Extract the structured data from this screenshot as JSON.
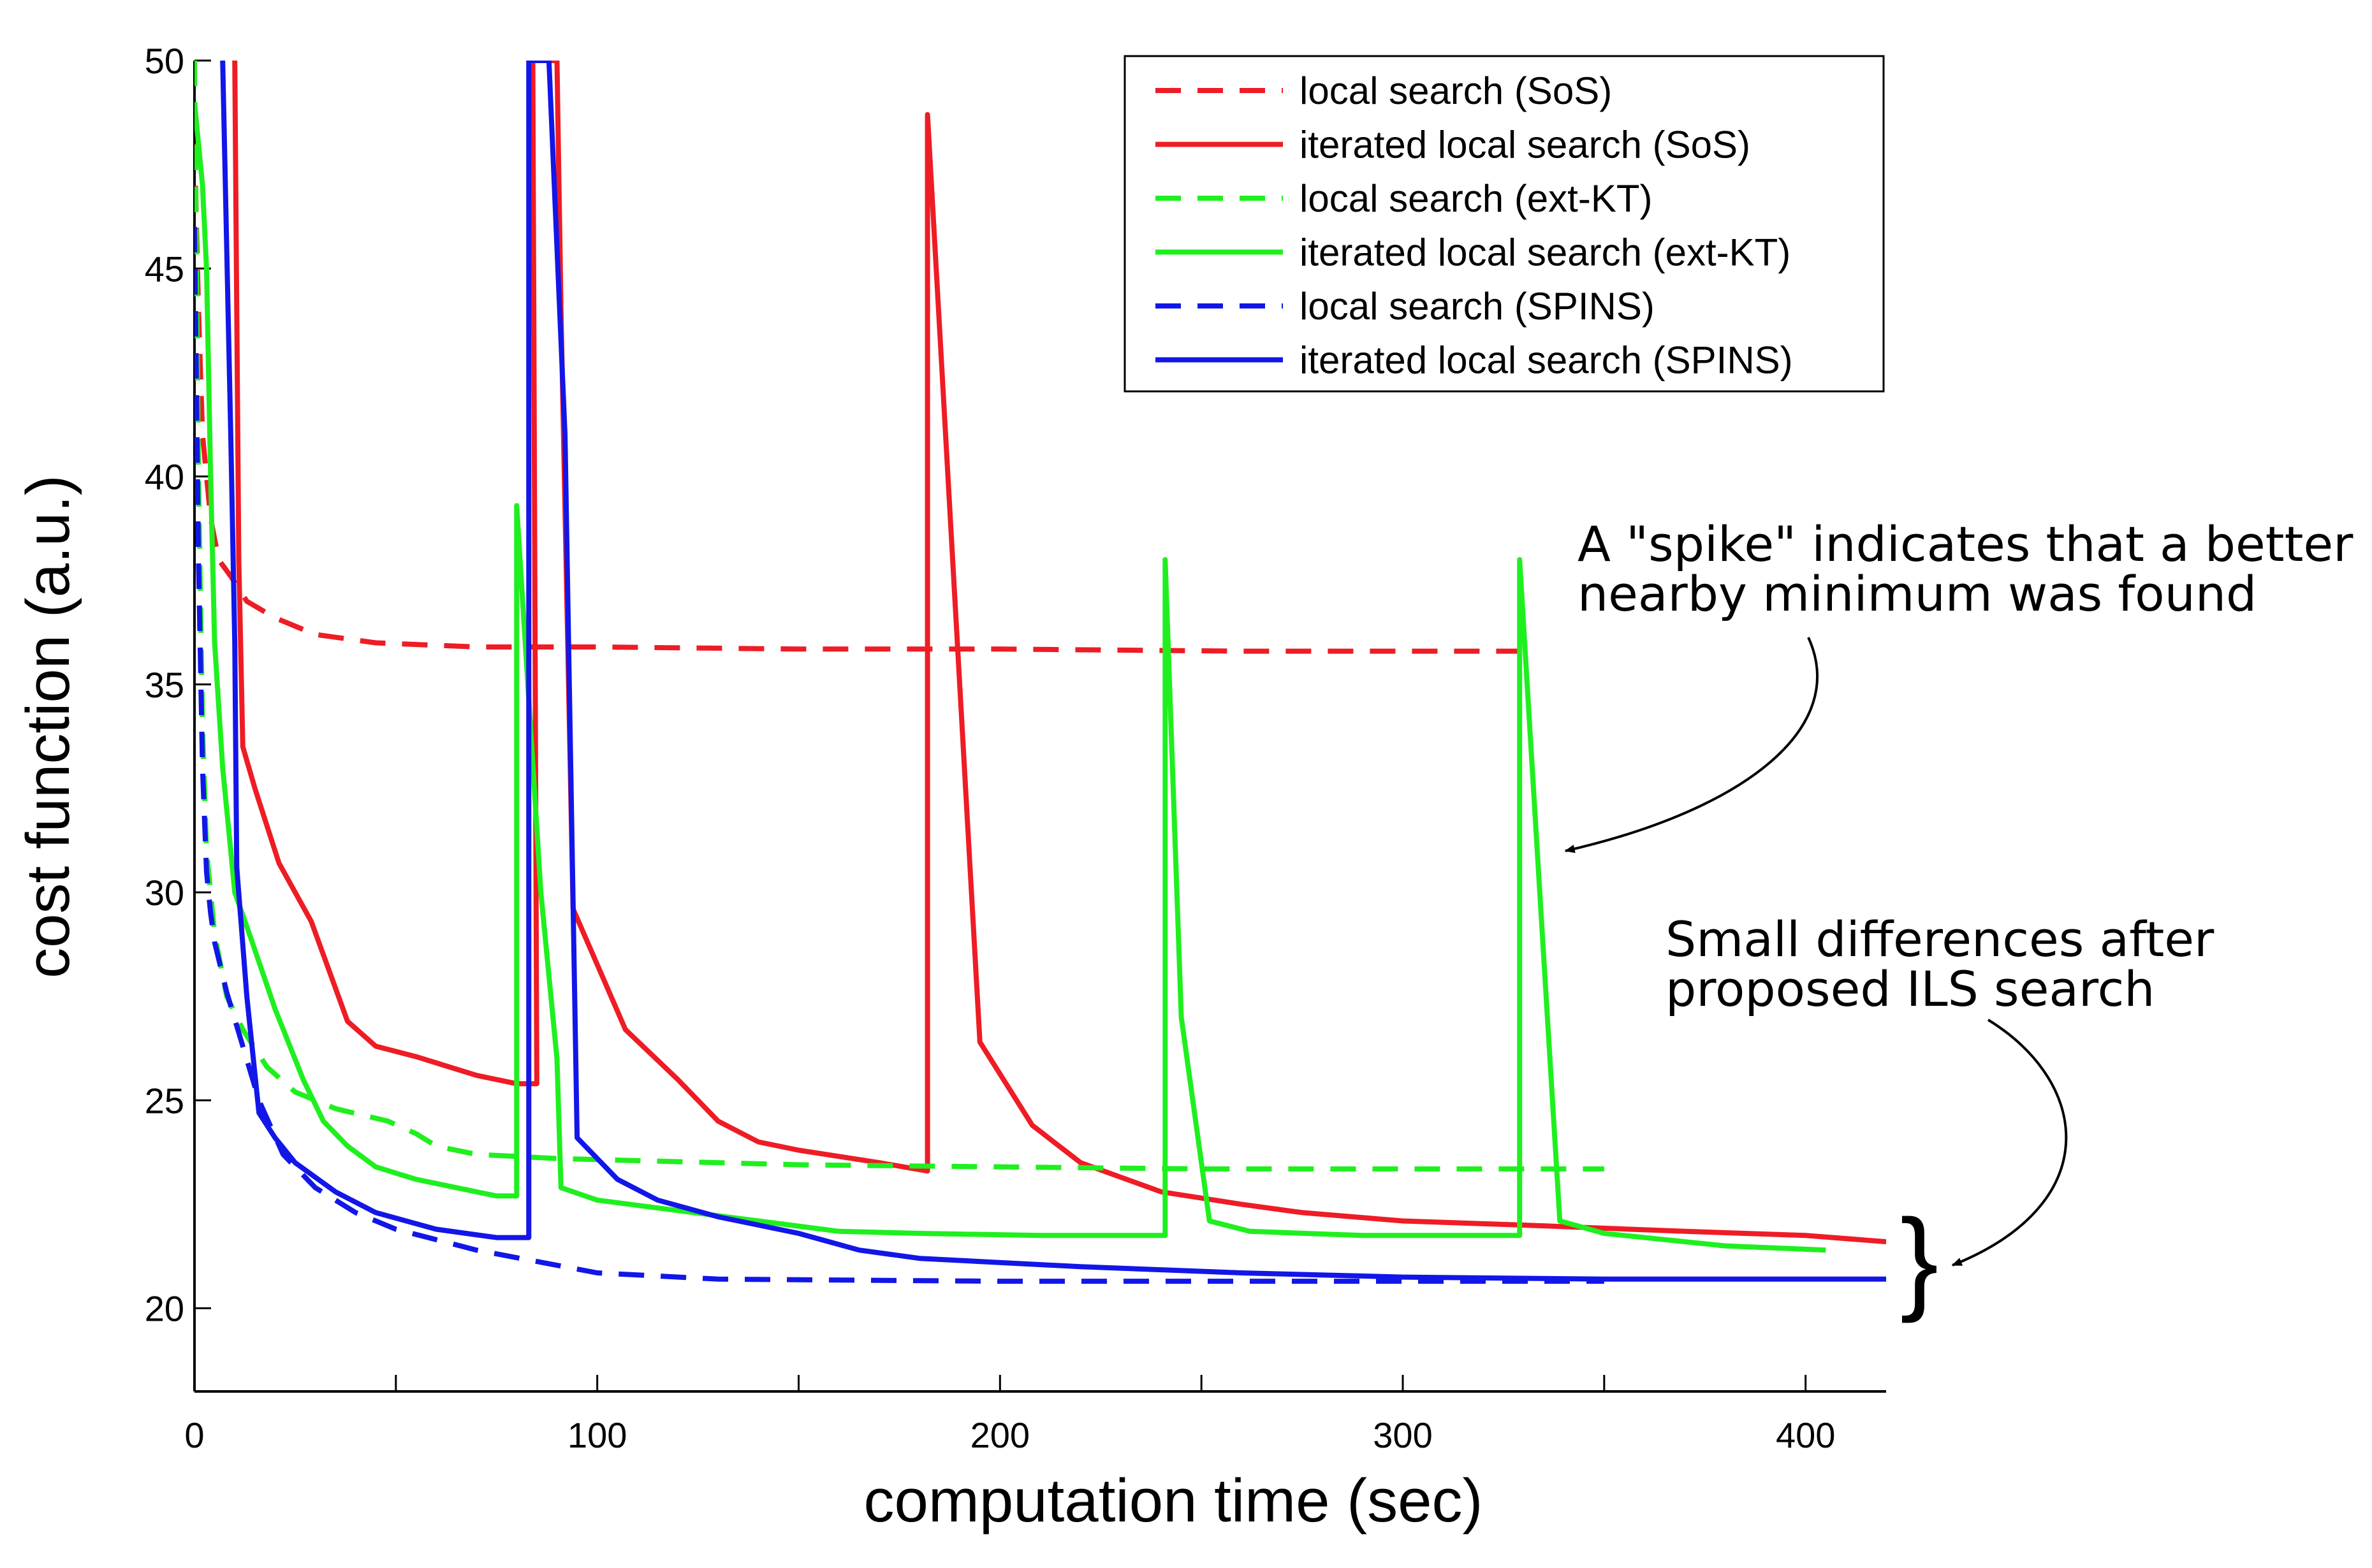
{
  "chart_data": {
    "type": "line",
    "title": "",
    "xlabel": "computation time (sec)",
    "ylabel": "cost function (a.u.)",
    "xlim": [
      0,
      420
    ],
    "ylim": [
      18,
      50
    ],
    "x_ticks": [
      0,
      100,
      200,
      300,
      400
    ],
    "x_minor_ticks": [
      50,
      150,
      250,
      350
    ],
    "y_ticks": [
      20,
      25,
      30,
      35,
      40,
      45,
      50
    ],
    "grid": false,
    "legend_position": "top-right",
    "series": [
      {
        "name": "local search (SoS)",
        "color": "#ee1c25",
        "dash": "dashed",
        "points": [
          [
            0,
            48
          ],
          [
            1,
            44
          ],
          [
            2,
            41
          ],
          [
            4,
            39
          ],
          [
            6,
            38
          ],
          [
            9,
            37.6
          ],
          [
            13,
            37
          ],
          [
            20,
            36.6
          ],
          [
            30,
            36.2
          ],
          [
            45,
            36
          ],
          [
            70,
            35.9
          ],
          [
            100,
            35.9
          ],
          [
            150,
            35.85
          ],
          [
            200,
            35.85
          ],
          [
            260,
            35.8
          ],
          [
            330,
            35.8
          ]
        ]
      },
      {
        "name": "iterated local search (SoS)",
        "color": "#ee1c25",
        "dash": "solid",
        "points": [
          [
            10,
            50
          ],
          [
            10.5,
            44
          ],
          [
            11,
            38
          ],
          [
            12,
            33.5
          ],
          [
            15,
            32.5
          ],
          [
            21,
            30.7
          ],
          [
            29,
            29.3
          ],
          [
            38,
            26.9
          ],
          [
            45,
            26.3
          ],
          [
            55,
            26.05
          ],
          [
            60,
            25.9
          ],
          [
            70,
            25.6
          ],
          [
            80,
            25.4
          ],
          [
            85,
            25.4
          ],
          [
            84,
            50
          ],
          [
            90,
            50
          ],
          [
            91,
            44
          ],
          [
            94,
            29.6
          ],
          [
            107,
            26.7
          ],
          [
            120,
            25.5
          ],
          [
            130,
            24.5
          ],
          [
            140,
            24
          ],
          [
            150,
            23.8
          ],
          [
            170,
            23.5
          ],
          [
            182,
            23.3
          ],
          [
            182,
            48.7
          ],
          [
            195,
            26.4
          ],
          [
            208,
            24.4
          ],
          [
            220,
            23.5
          ],
          [
            240,
            22.8
          ],
          [
            260,
            22.5
          ],
          [
            275,
            22.3
          ],
          [
            300,
            22.1
          ],
          [
            330,
            22
          ],
          [
            370,
            21.85
          ],
          [
            400,
            21.75
          ],
          [
            420,
            21.6
          ]
        ]
      },
      {
        "name": "local search (ext-KT)",
        "color": "#1fef1f",
        "dash": "dashed",
        "points": [
          [
            0,
            50
          ],
          [
            1,
            40
          ],
          [
            2,
            34
          ],
          [
            3,
            31
          ],
          [
            5,
            29
          ],
          [
            8,
            27.5
          ],
          [
            12,
            26.7
          ],
          [
            18,
            25.8
          ],
          [
            25,
            25.2
          ],
          [
            35,
            24.8
          ],
          [
            48,
            24.5
          ],
          [
            55,
            24.2
          ],
          [
            60,
            23.9
          ],
          [
            70,
            23.7
          ],
          [
            90,
            23.6
          ],
          [
            150,
            23.45
          ],
          [
            250,
            23.35
          ],
          [
            350,
            23.35
          ]
        ]
      },
      {
        "name": "iterated local search (ext-KT)",
        "color": "#1fef1f",
        "dash": "solid",
        "points": [
          [
            0,
            49
          ],
          [
            1,
            48
          ],
          [
            2,
            47
          ],
          [
            3,
            45
          ],
          [
            4,
            40
          ],
          [
            5,
            36
          ],
          [
            7,
            33
          ],
          [
            10,
            30
          ],
          [
            14,
            28.9
          ],
          [
            20,
            27.2
          ],
          [
            27,
            25.5
          ],
          [
            32,
            24.5
          ],
          [
            38,
            23.9
          ],
          [
            45,
            23.4
          ],
          [
            55,
            23.1
          ],
          [
            65,
            22.9
          ],
          [
            75,
            22.7
          ],
          [
            80,
            22.7
          ],
          [
            80,
            39.3
          ],
          [
            86,
            30
          ],
          [
            90,
            26
          ],
          [
            91,
            22.9
          ],
          [
            100,
            22.6
          ],
          [
            120,
            22.35
          ],
          [
            140,
            22.1
          ],
          [
            160,
            21.85
          ],
          [
            180,
            21.8
          ],
          [
            210,
            21.75
          ],
          [
            241,
            21.75
          ],
          [
            241,
            38
          ],
          [
            245,
            27
          ],
          [
            252,
            22.1
          ],
          [
            262,
            21.85
          ],
          [
            290,
            21.75
          ],
          [
            329,
            21.75
          ],
          [
            329,
            38
          ],
          [
            334,
            30
          ],
          [
            339,
            22.1
          ],
          [
            350,
            21.8
          ],
          [
            380,
            21.5
          ],
          [
            405,
            21.4
          ]
        ]
      },
      {
        "name": "local search (SPINS)",
        "color": "#1216e8",
        "dash": "dashed",
        "points": [
          [
            0,
            46
          ],
          [
            1,
            38
          ],
          [
            2,
            33
          ],
          [
            3,
            30.5
          ],
          [
            4,
            29.5
          ],
          [
            5,
            28.8
          ],
          [
            8,
            27.6
          ],
          [
            12,
            26.3
          ],
          [
            16,
            25
          ],
          [
            22,
            23.7
          ],
          [
            30,
            22.9
          ],
          [
            40,
            22.3
          ],
          [
            50,
            21.9
          ],
          [
            70,
            21.4
          ],
          [
            100,
            20.85
          ],
          [
            130,
            20.7
          ],
          [
            200,
            20.65
          ],
          [
            300,
            20.65
          ],
          [
            350,
            20.65
          ]
        ]
      },
      {
        "name": "iterated local search (SPINS)",
        "color": "#1216e8",
        "dash": "solid",
        "points": [
          [
            7,
            50
          ],
          [
            9,
            41
          ],
          [
            10,
            36
          ],
          [
            10.5,
            30.6
          ],
          [
            13,
            27.5
          ],
          [
            16,
            24.7
          ],
          [
            20,
            24.1
          ],
          [
            25,
            23.5
          ],
          [
            35,
            22.8
          ],
          [
            45,
            22.3
          ],
          [
            60,
            21.9
          ],
          [
            75,
            21.7
          ],
          [
            83,
            21.7
          ],
          [
            83,
            50
          ],
          [
            88,
            50
          ],
          [
            92,
            41
          ],
          [
            95,
            24.1
          ],
          [
            105,
            23.1
          ],
          [
            115,
            22.6
          ],
          [
            130,
            22.2
          ],
          [
            150,
            21.8
          ],
          [
            165,
            21.4
          ],
          [
            180,
            21.2
          ],
          [
            220,
            21
          ],
          [
            260,
            20.85
          ],
          [
            300,
            20.75
          ],
          [
            350,
            20.7
          ],
          [
            420,
            20.7
          ]
        ]
      }
    ],
    "annotations": [
      {
        "lines": [
          "A \"spike\" indicates that a better",
          "nearby minimum was found"
        ],
        "points_to": [
          340,
          31.1
        ]
      },
      {
        "lines": [
          "Small differences after",
          "proposed ILS search"
        ],
        "points_to": [
          431,
          21.1
        ]
      }
    ]
  }
}
